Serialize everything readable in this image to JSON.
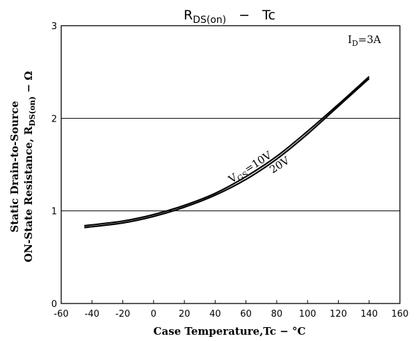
{
  "chart_data": {
    "type": "line",
    "title": {
      "main": "R",
      "sub": "DS(on)",
      "sep": "−",
      "tail": "Tc"
    },
    "xlabel": "Case Temperature,Tc − °C",
    "ylabel_line1": "Static Drain-to-Source",
    "ylabel_line2": {
      "main": "ON-State Resistance, R",
      "sub": "DS(on)",
      "tail": " − Ω"
    },
    "xlim": [
      -60,
      160
    ],
    "ylim": [
      0,
      3
    ],
    "x_ticks": [
      "-60",
      "-40",
      "-20",
      "0",
      "20",
      "40",
      "60",
      "80",
      "100",
      "120",
      "140",
      "160"
    ],
    "x_tick_values": [
      -60,
      -40,
      -20,
      0,
      20,
      40,
      60,
      80,
      100,
      120,
      140,
      160
    ],
    "y_ticks": [
      "0",
      "1",
      "2",
      "3"
    ],
    "y_tick_values": [
      0,
      1,
      2,
      3
    ],
    "grid": true,
    "condition": {
      "main": "I",
      "sub": "D",
      "tail": "=3A"
    },
    "series_labels": {
      "v1": {
        "main": "V",
        "sub": "GS",
        "tail": "=10V"
      },
      "v2": "20V"
    },
    "series": [
      {
        "x": [
          -45,
          -20,
          0,
          20,
          40,
          60,
          80,
          100,
          120,
          140
        ],
        "y": [
          0.84,
          0.89,
          0.96,
          1.06,
          1.19,
          1.37,
          1.59,
          1.86,
          2.15,
          2.45
        ]
      },
      {
        "x": [
          -45,
          -20,
          0,
          20,
          40,
          60,
          80,
          100,
          120,
          140
        ],
        "y": [
          0.82,
          0.87,
          0.94,
          1.04,
          1.17,
          1.34,
          1.56,
          1.83,
          2.13,
          2.43
        ]
      }
    ]
  }
}
